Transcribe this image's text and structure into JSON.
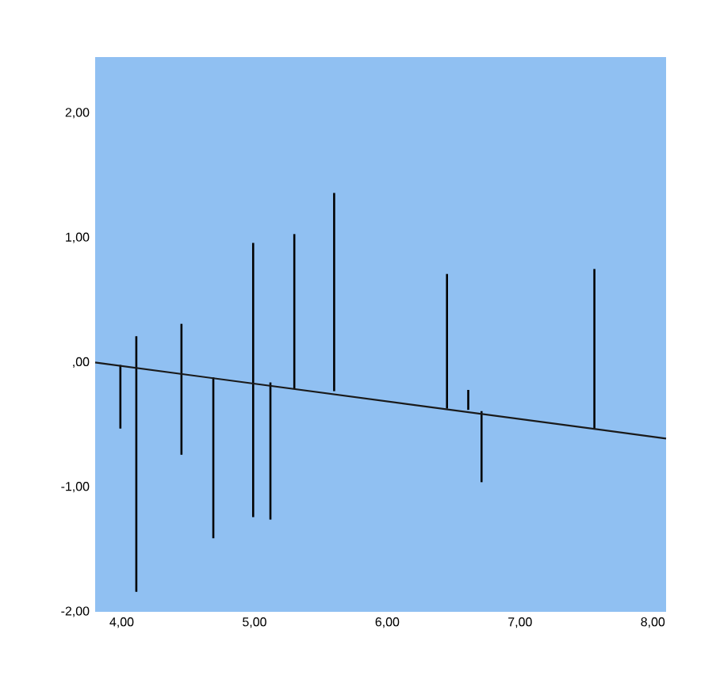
{
  "chart_data": {
    "type": "bar",
    "xlim": [
      3.8,
      8.1
    ],
    "ylim": [
      -2,
      2.45
    ],
    "xticks": [
      {
        "value": 4,
        "label": "4,00"
      },
      {
        "value": 5,
        "label": "5,00"
      },
      {
        "value": 6,
        "label": "6,00"
      },
      {
        "value": 7,
        "label": "7,00"
      },
      {
        "value": 8,
        "label": "8,00"
      }
    ],
    "yticks": [
      {
        "value": -2,
        "label": "-2,00"
      },
      {
        "value": -1,
        "label": "-1,00"
      },
      {
        "value": 0,
        "label": ",00"
      },
      {
        "value": 1,
        "label": "1,00"
      },
      {
        "value": 2,
        "label": "2,00"
      }
    ],
    "series": [
      {
        "color": "#000000",
        "base": [
          -0.53,
          -1.84,
          -0.74,
          -1.41,
          -1.24,
          -1.26,
          -0.21,
          -0.23,
          -0.37,
          -0.38,
          -0.96,
          -0.53
        ],
        "x": [
          3.99,
          4.11,
          4.45,
          4.69,
          4.99,
          5.12,
          5.3,
          5.6,
          6.45,
          6.61,
          6.71,
          7.56
        ],
        "values": [
          0.51,
          2.05,
          1.05,
          1.29,
          2.2,
          1.1,
          1.24,
          1.59,
          1.08,
          0.16,
          0.57,
          1.28
        ]
      },
      {
        "type": "line",
        "color": "#1a1a1a",
        "x": [
          3.8,
          8.1
        ],
        "values": [
          0,
          -0.61
        ]
      }
    ]
  }
}
